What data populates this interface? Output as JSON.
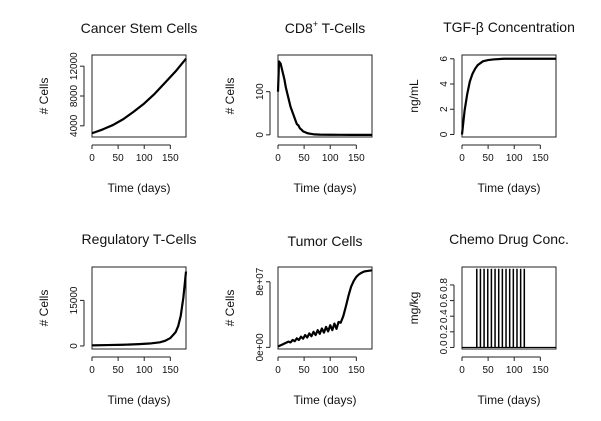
{
  "chart_data": [
    {
      "type": "line",
      "title": "Cancer Stem Cells",
      "xlabel": "Time (days)",
      "ylabel": "# Cells",
      "xlim": [
        0,
        180
      ],
      "ylim": [
        2500,
        13500
      ],
      "xticks": [
        0,
        50,
        100,
        150
      ],
      "xtick_labels": [
        "0",
        "50",
        "100",
        "150"
      ],
      "yticks": [
        4000,
        8000,
        12000
      ],
      "ytick_labels": [
        "4000",
        "8000",
        "12000"
      ],
      "x": [
        0,
        20,
        40,
        60,
        80,
        100,
        120,
        140,
        160,
        180
      ],
      "values": [
        3000,
        3500,
        4100,
        4900,
        5900,
        7000,
        8300,
        9800,
        11300,
        13000
      ]
    },
    {
      "type": "line",
      "title": "CD8",
      "title_sup": "+",
      "title_rest": " T-Cells",
      "xlabel": "Time (days)",
      "ylabel": "# Cells",
      "xlim": [
        0,
        180
      ],
      "ylim": [
        -5,
        185
      ],
      "xticks": [
        0,
        50,
        100,
        150
      ],
      "xtick_labels": [
        "0",
        "50",
        "100",
        "150"
      ],
      "yticks": [
        0,
        100
      ],
      "ytick_labels": [
        "0",
        "100"
      ],
      "x": [
        0,
        2,
        5,
        8,
        12,
        15,
        18,
        21,
        24,
        27,
        30,
        33,
        36,
        39,
        42,
        45,
        48,
        52,
        56,
        60,
        70,
        80,
        100,
        120,
        140,
        160,
        180
      ],
      "values": [
        100,
        170,
        165,
        150,
        130,
        110,
        95,
        80,
        65,
        55,
        45,
        35,
        25,
        22,
        15,
        12,
        8,
        6,
        4,
        3,
        1,
        0.5,
        0.2,
        0.1,
        0,
        0,
        0
      ]
    },
    {
      "type": "line",
      "title": "TGF-β Concentration",
      "xlabel": "Time (days)",
      "ylabel": "ng/mL",
      "xlim": [
        0,
        180
      ],
      "ylim": [
        -0.2,
        6.3
      ],
      "xticks": [
        0,
        50,
        100,
        150
      ],
      "xtick_labels": [
        "0",
        "50",
        "100",
        "150"
      ],
      "yticks": [
        0,
        2,
        4,
        6
      ],
      "ytick_labels": [
        "0",
        "2",
        "4",
        "6"
      ],
      "x": [
        0,
        5,
        10,
        15,
        20,
        25,
        30,
        40,
        50,
        60,
        80,
        100,
        120,
        150,
        180
      ],
      "values": [
        0,
        1.9,
        3.2,
        4.2,
        4.8,
        5.2,
        5.5,
        5.8,
        5.9,
        5.95,
        6.0,
        6.0,
        6.0,
        6.0,
        6.0
      ]
    },
    {
      "type": "line",
      "title": "Regulatory T-Cells",
      "xlabel": "Time (days)",
      "ylabel": "# Cells",
      "xlim": [
        0,
        180
      ],
      "ylim": [
        -1000,
        26000
      ],
      "xticks": [
        0,
        50,
        100,
        150
      ],
      "xtick_labels": [
        "0",
        "50",
        "100",
        "150"
      ],
      "yticks": [
        0,
        15000
      ],
      "ytick_labels": [
        "0",
        "15000"
      ],
      "x": [
        0,
        30,
        60,
        90,
        110,
        130,
        140,
        150,
        160,
        165,
        170,
        175,
        180
      ],
      "values": [
        200,
        300,
        400,
        600,
        800,
        1200,
        1700,
        2600,
        4500,
        6500,
        10000,
        16000,
        24500
      ]
    },
    {
      "type": "line",
      "title": "Tumor Cells",
      "xlabel": "Time (days)",
      "ylabel": "# Cells",
      "xlim": [
        0,
        180
      ],
      "ylim": [
        -2000000,
        98000000
      ],
      "xticks": [
        0,
        50,
        100,
        150
      ],
      "xtick_labels": [
        "0",
        "50",
        "100",
        "150"
      ],
      "yticks": [
        0,
        80000000
      ],
      "ytick_labels": [
        "0e+00",
        "8e+07"
      ],
      "x": [
        0,
        10,
        20,
        24,
        28,
        32,
        36,
        40,
        44,
        48,
        52,
        56,
        60,
        64,
        68,
        72,
        76,
        80,
        84,
        88,
        92,
        96,
        100,
        104,
        108,
        112,
        116,
        120,
        125,
        130,
        135,
        140,
        145,
        150,
        155,
        160,
        165,
        170,
        175,
        180
      ],
      "values": [
        1000000,
        4000000,
        7000000,
        6000000,
        9000000,
        7500000,
        11000000,
        9000000,
        13000000,
        10500000,
        15000000,
        12000000,
        17000000,
        13500000,
        19000000,
        15000000,
        21000000,
        16500000,
        23000000,
        18000000,
        25000000,
        19500000,
        27000000,
        21000000,
        29000000,
        22500000,
        31000000,
        30000000,
        38000000,
        50000000,
        63000000,
        74000000,
        81000000,
        86000000,
        89000000,
        91000000,
        92500000,
        93000000,
        93500000,
        94000000
      ]
    },
    {
      "type": "line",
      "title": "Chemo Drug Conc.",
      "xlabel": "Time (days)",
      "ylabel": "mg/kg",
      "xlim": [
        0,
        180
      ],
      "ylim": [
        -0.02,
        1.03
      ],
      "xticks": [
        0,
        50,
        100,
        150
      ],
      "xtick_labels": [
        "0",
        "50",
        "100",
        "150"
      ],
      "yticks": [
        0.0,
        0.2,
        0.4,
        0.6,
        0.8
      ],
      "ytick_labels": [
        "0.0",
        "0.2",
        "0.4",
        "0.6",
        "0.8"
      ],
      "pulses": [
        28,
        35,
        42,
        49,
        56,
        63,
        70,
        77,
        84,
        91,
        98,
        105,
        112,
        119
      ],
      "pulse_height": 1.0
    }
  ]
}
